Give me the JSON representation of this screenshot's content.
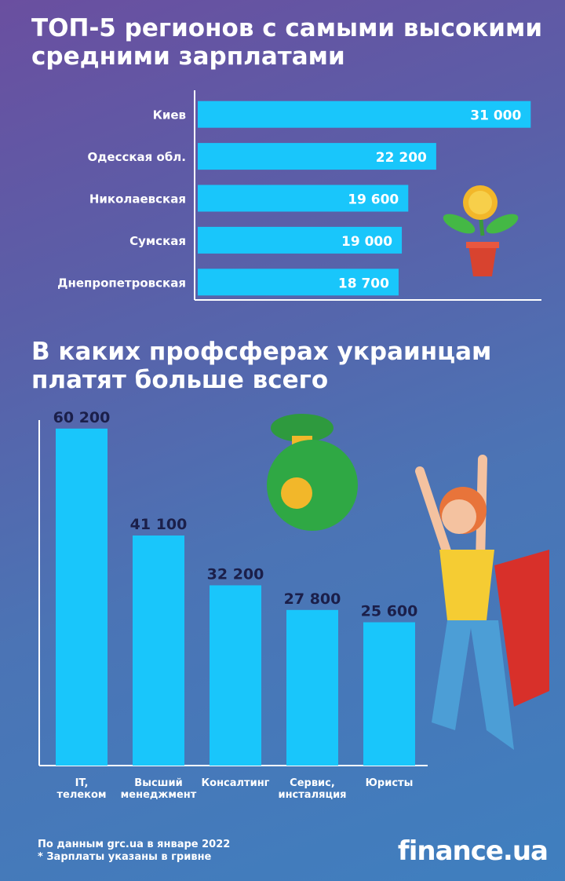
{
  "chart_data": [
    {
      "type": "hbar",
      "title": "ТОП-5 регионов с самыми высокими средними зарплатами",
      "categories": [
        "Киев",
        "Одесская обл.",
        "Николаевская",
        "Сумская",
        "Днепропетровская"
      ],
      "values": [
        31000,
        22200,
        19600,
        19000,
        18700
      ],
      "value_labels": [
        "31 000",
        "22 200",
        "19 600",
        "19 000",
        "18 700"
      ],
      "color": "#19c6fb",
      "xlim": [
        0,
        32000
      ]
    },
    {
      "type": "bar",
      "title": "В каких профсферах украинцам платят больше всего",
      "categories": [
        "IT, телеком",
        "Высший менеджмент",
        "Консалтинг",
        "Сервис, инсталяция",
        "Юристы"
      ],
      "values": [
        60200,
        41100,
        32200,
        27800,
        25600
      ],
      "value_labels": [
        "60 200",
        "41 100",
        "32 200",
        "27 800",
        "25 600"
      ],
      "color": "#19c6fb",
      "ylim": [
        0,
        62000
      ]
    }
  ],
  "source": "По данным grc.ua в январе 2022",
  "note": "* Зарплаты указаны в гривне",
  "logo": "finance.ua"
}
